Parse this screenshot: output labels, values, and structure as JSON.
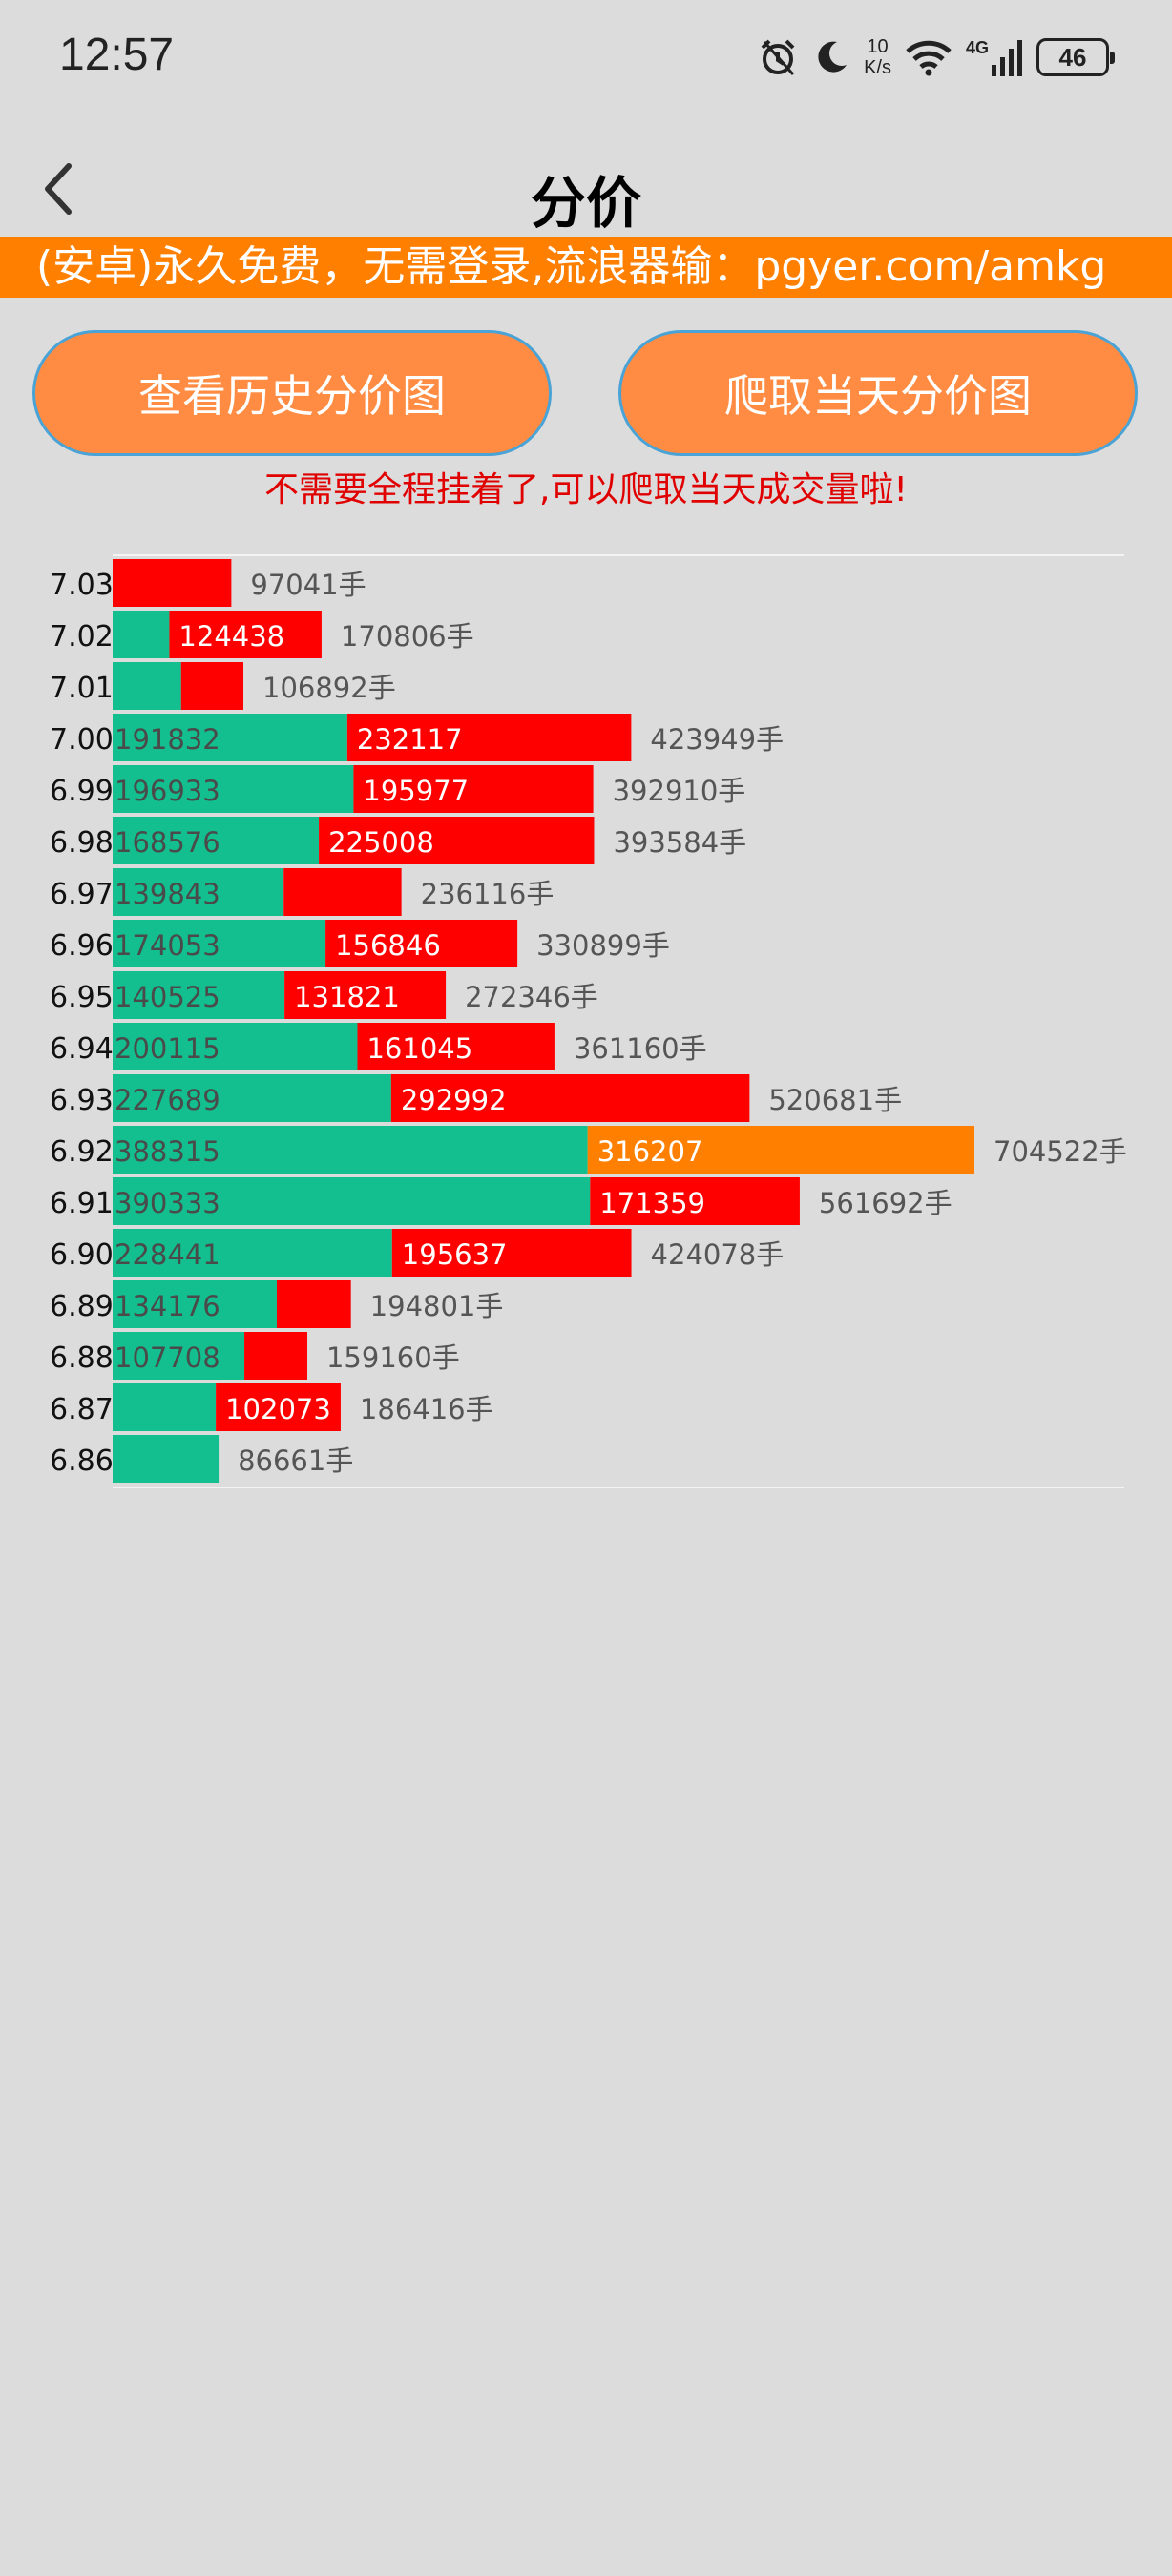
{
  "status_bar": {
    "time": "12:57",
    "net_speed_value": "10",
    "net_speed_unit": "K/s",
    "network_type": "4G",
    "battery": "46",
    "icons": [
      "alarm-icon",
      "moon-icon",
      "wifi-icon",
      "signal-icon",
      "battery-icon"
    ]
  },
  "header": {
    "title": "分价",
    "back_icon": "chevron-left-icon"
  },
  "banner": {
    "text": "(安卓)永久免费，无需登录,流浪器输：pgyer.com/amkg"
  },
  "buttons": {
    "history": "查看历史分价图",
    "today": "爬取当天分价图"
  },
  "notice": "不需要全程挂着了,可以爬取当天成交量啦!",
  "colors": {
    "green": "#13bf8f",
    "red": "#ff0000",
    "orange": "#ff8000",
    "volume_text": "#555555"
  },
  "chart_data": {
    "type": "bar",
    "orientation": "horizontal-stacked",
    "unit": "手",
    "rows": [
      {
        "price": "7.03",
        "green": 0,
        "red": 97041,
        "total": 97041
      },
      {
        "price": "7.02",
        "green": 46368,
        "red": 124438,
        "total": 170806
      },
      {
        "price": "7.01",
        "green": 56000,
        "red": 50892,
        "total": 106892
      },
      {
        "price": "7.00",
        "green": 191832,
        "red": 232117,
        "total": 423949
      },
      {
        "price": "6.99",
        "green": 196933,
        "red": 195977,
        "total": 392910
      },
      {
        "price": "6.98",
        "green": 168576,
        "red": 225008,
        "total": 393584
      },
      {
        "price": "6.97",
        "green": 139843,
        "red": 96273,
        "total": 236116
      },
      {
        "price": "6.96",
        "green": 174053,
        "red": 156846,
        "total": 330899
      },
      {
        "price": "6.95",
        "green": 140525,
        "red": 131821,
        "total": 272346
      },
      {
        "price": "6.94",
        "green": 200115,
        "red": 161045,
        "total": 361160
      },
      {
        "price": "6.93",
        "green": 227689,
        "red": 292992,
        "total": 520681
      },
      {
        "price": "6.92",
        "green": 388315,
        "red": 316207,
        "total": 704522,
        "highlight": true
      },
      {
        "price": "6.91",
        "green": 390333,
        "red": 171359,
        "total": 561692
      },
      {
        "price": "6.90",
        "green": 228441,
        "red": 195637,
        "total": 424078
      },
      {
        "price": "6.89",
        "green": 134176,
        "red": 60625,
        "total": 194801
      },
      {
        "price": "6.88",
        "green": 107708,
        "red": 51452,
        "total": 159160
      },
      {
        "price": "6.87",
        "green": 84343,
        "red": 102073,
        "total": 186416
      },
      {
        "price": "6.86",
        "green": 86661,
        "red": 0,
        "total": 86661
      }
    ],
    "labels": [
      {
        "price": "7.03",
        "green": "",
        "red": ""
      },
      {
        "price": "7.02",
        "green": "",
        "red": "124438"
      },
      {
        "price": "7.01",
        "green": "",
        "red": ""
      },
      {
        "price": "7.00",
        "green": "191832",
        "red": "232117"
      },
      {
        "price": "6.99",
        "green": "196933",
        "red": "195977"
      },
      {
        "price": "6.98",
        "green": "168576",
        "red": "225008"
      },
      {
        "price": "6.97",
        "green": "139843",
        "red": ""
      },
      {
        "price": "6.96",
        "green": "174053",
        "red": "156846"
      },
      {
        "price": "6.95",
        "green": "140525",
        "red": "131821"
      },
      {
        "price": "6.94",
        "green": "200115",
        "red": "161045"
      },
      {
        "price": "6.93",
        "green": "227689",
        "red": "292992"
      },
      {
        "price": "6.92",
        "green": "388315",
        "red": "316207"
      },
      {
        "price": "6.91",
        "green": "390333",
        "red": "171359"
      },
      {
        "price": "6.90",
        "green": "228441",
        "red": "195637"
      },
      {
        "price": "6.89",
        "green": "134176",
        "red": ""
      },
      {
        "price": "6.88",
        "green": "107708",
        "red": ""
      },
      {
        "price": "6.87",
        "green": "",
        "red": "102073"
      },
      {
        "price": "6.86",
        "green": "",
        "red": ""
      }
    ]
  }
}
